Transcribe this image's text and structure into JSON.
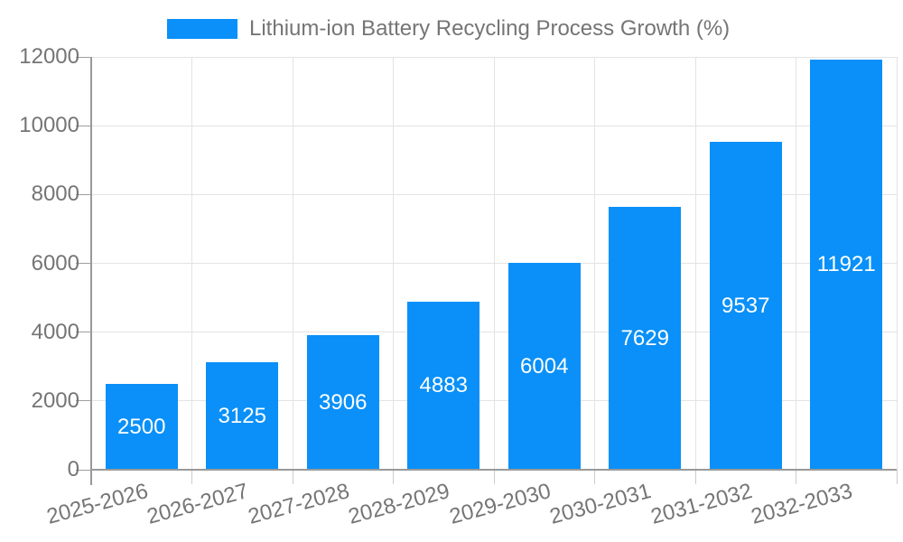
{
  "chart_data": {
    "type": "bar",
    "title": "Lithium-ion Battery Recycling Process Growth (%)",
    "categories": [
      "2025-2026",
      "2026-2027",
      "2027-2028",
      "2028-2029",
      "2029-2030",
      "2030-2031",
      "2031-2032",
      "2032-2033"
    ],
    "values": [
      2500,
      3125,
      3906,
      4883,
      6004,
      7629,
      9537,
      11921
    ],
    "bar_labels": [
      "2500",
      "3125",
      "3906",
      "4883",
      "6004",
      "7629",
      "9537",
      "11921"
    ],
    "ytick_labels": [
      "0",
      "2000",
      "4000",
      "6000",
      "8000",
      "10000",
      "12000"
    ],
    "ylim": [
      0,
      12000
    ],
    "ytick_step": 2000,
    "grid": true,
    "legend_position": "top",
    "xtick_rotation_deg": -15
  },
  "colors": {
    "bar": "#0a90f8",
    "axis": "#999999",
    "grid": "#e3e3e3",
    "x_tick": "#cccccc",
    "y_tick": "#9e9e9e",
    "tick_text": "#757575",
    "value_label": "#ffffff",
    "background": "#ffffff"
  }
}
